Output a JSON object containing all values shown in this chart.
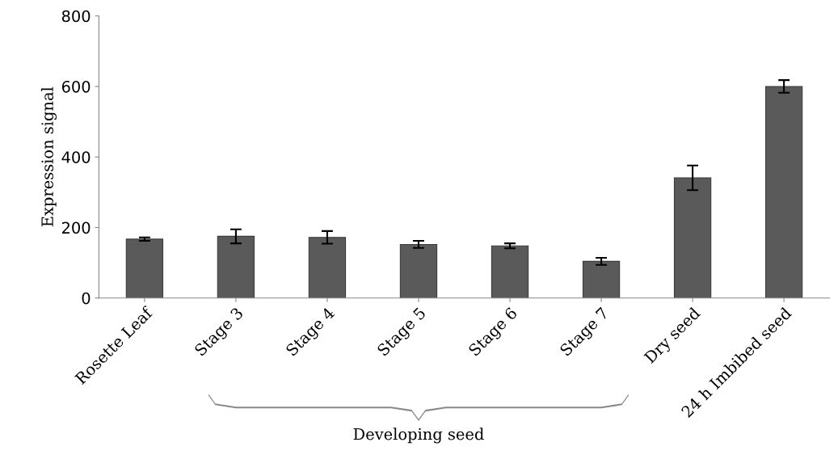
{
  "chart_data": {
    "type": "bar",
    "ylabel": "Expression signal",
    "categories": [
      "Rosette Leaf",
      "Stage 3",
      "Stage 4",
      "Stage 5",
      "Stage 6",
      "Stage 7",
      "Dry seed",
      "24 h Imbibed seed"
    ],
    "values": [
      167,
      175,
      172,
      152,
      148,
      104,
      341,
      600
    ],
    "errors": [
      5,
      20,
      18,
      10,
      7,
      10,
      35,
      18
    ],
    "color": "#5a5a5a",
    "ylim": [
      0,
      800
    ],
    "yticks": [
      0,
      200,
      400,
      600,
      800
    ],
    "grid": false,
    "annotations": [
      "Developing seed"
    ]
  }
}
